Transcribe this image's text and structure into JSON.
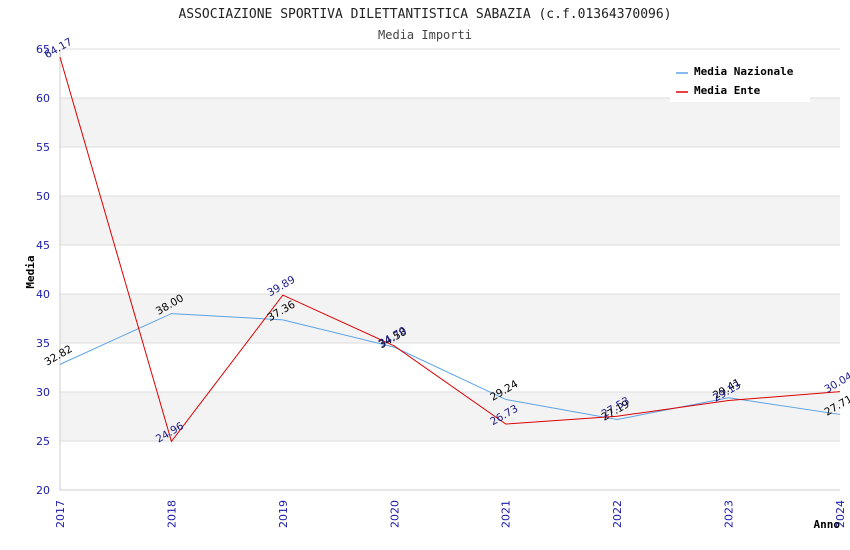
{
  "chart_data": {
    "type": "line",
    "title": "ASSOCIAZIONE SPORTIVA DILETTANTISTICA SABAZIA (c.f.01364370096)",
    "subtitle": "Media Importi",
    "xlabel": "Anno",
    "ylabel": "Media",
    "ylim": [
      20,
      65
    ],
    "yticks": [
      "20",
      "25",
      "30",
      "35",
      "40",
      "45",
      "50",
      "55",
      "60",
      "65"
    ],
    "categories": [
      "2017",
      "2018",
      "2019",
      "2020",
      "2021",
      "2022",
      "2023",
      "2024"
    ],
    "grid": true,
    "legend_position": "top-right",
    "series": [
      {
        "name": "Media Nazionale",
        "color": "#5ba3e6",
        "label_color": "#000000",
        "values": [
          32.82,
          38.0,
          37.36,
          34.58,
          29.24,
          27.19,
          29.41,
          27.71
        ],
        "labels": [
          "32.82",
          "38.00",
          "37.36",
          "34.58",
          "29.24",
          "27.19",
          "29.41",
          "27.71"
        ]
      },
      {
        "name": "Media Ente",
        "color": "#dd0000",
        "label_color": "#1a1a8a",
        "values": [
          64.17,
          24.96,
          39.89,
          34.7,
          26.73,
          27.53,
          29.13,
          30.04
        ],
        "labels": [
          "64.17",
          "24.96",
          "39.89",
          "34.70",
          "26.73",
          "27.53",
          "29.13",
          "30.04"
        ]
      }
    ]
  }
}
